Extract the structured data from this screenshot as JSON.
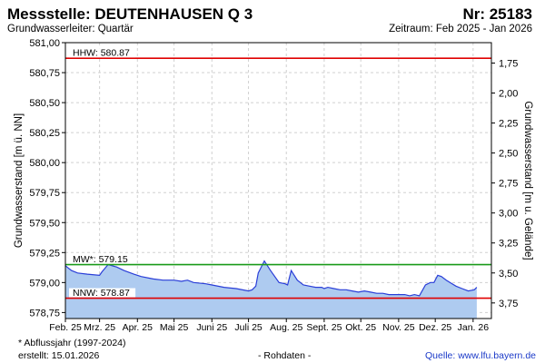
{
  "header": {
    "title": "Messstelle: DEUTENHAUSEN Q 3",
    "number": "Nr: 25183",
    "aquifer": "Grundwasserleiter: Quartär",
    "period": "Zeitraum: Feb 2025 - Jan 2026"
  },
  "footer": {
    "note": "* Abflussjahr (1997-2024)",
    "created": "erstellt:  15.01.2026",
    "raw": "- Rohdaten -",
    "source": "Quelle:  www.lfu.bayern.de"
  },
  "chart_data": {
    "type": "area",
    "ylabel": "Grundwasserstand [m ü. NN]",
    "y2label": "Grundwasserstand [m u. Gelände]",
    "ylim": [
      578.7,
      581.0
    ],
    "y2lim": [
      1.58,
      3.88
    ],
    "yticks": [
      "578,75",
      "579,00",
      "579,25",
      "579,50",
      "579,75",
      "580,00",
      "580,25",
      "580,50",
      "580,75",
      "581,00"
    ],
    "yticks_values": [
      578.75,
      579.0,
      579.25,
      579.5,
      579.75,
      580.0,
      580.25,
      580.5,
      580.75,
      581.0
    ],
    "y2ticks": [
      "1,75",
      "2,00",
      "2,25",
      "2,50",
      "2,75",
      "3,00",
      "3,25",
      "3,50",
      "3,75"
    ],
    "y2ticks_values": [
      1.75,
      2.0,
      2.25,
      2.5,
      2.75,
      3.0,
      3.25,
      3.5,
      3.75
    ],
    "xticks": [
      "Feb. 25",
      "Mrz. 25",
      "Apr. 25",
      "Mai 25",
      "Juni 25",
      "Juli 25",
      "Aug. 25",
      "Sept. 25",
      "Okt. 25",
      "Nov. 25",
      "Dez. 25",
      "Jan. 26"
    ],
    "xlim": [
      0,
      349
    ],
    "xticks_values": [
      0,
      28,
      59,
      89,
      120,
      150,
      181,
      212,
      242,
      273,
      303,
      334
    ],
    "grid": true,
    "reference_lines": [
      {
        "label": "HHW: 580.87",
        "value": 580.87,
        "color": "#e00000"
      },
      {
        "label": "MW*: 579.15",
        "value": 579.15,
        "color": "#1a9a1a"
      },
      {
        "label": "NNW: 578.87",
        "value": 578.87,
        "color": "#e00000"
      }
    ],
    "series": [
      {
        "color": "#2a3ed8",
        "fill": "#aecbf0",
        "x": [
          0,
          5,
          10,
          18,
          28,
          30,
          35,
          42,
          48,
          56,
          62,
          72,
          80,
          89,
          95,
          100,
          105,
          115,
          120,
          130,
          140,
          150,
          153,
          156,
          158,
          160,
          163,
          168,
          175,
          180,
          182,
          185,
          190,
          195,
          200,
          205,
          210,
          212,
          215,
          220,
          225,
          230,
          235,
          240,
          245,
          250,
          255,
          260,
          265,
          270,
          273,
          278,
          282,
          286,
          290,
          295,
          299,
          302,
          305,
          308,
          312,
          315,
          320,
          325,
          330,
          335,
          337
        ],
        "y": [
          579.14,
          579.1,
          579.08,
          579.07,
          579.06,
          579.09,
          579.15,
          579.13,
          579.1,
          579.07,
          579.05,
          579.03,
          579.02,
          579.02,
          579.01,
          579.02,
          579.0,
          578.99,
          578.98,
          578.96,
          578.95,
          578.93,
          578.94,
          578.97,
          579.08,
          579.12,
          579.18,
          579.1,
          579.0,
          578.99,
          578.98,
          579.1,
          579.02,
          578.98,
          578.97,
          578.96,
          578.96,
          578.95,
          578.96,
          578.95,
          578.94,
          578.94,
          578.93,
          578.92,
          578.93,
          578.92,
          578.91,
          578.91,
          578.9,
          578.9,
          578.9,
          578.9,
          578.89,
          578.9,
          578.89,
          578.98,
          579.0,
          579.0,
          579.06,
          579.05,
          579.02,
          579.0,
          578.97,
          578.95,
          578.93,
          578.94,
          578.96
        ]
      }
    ]
  }
}
